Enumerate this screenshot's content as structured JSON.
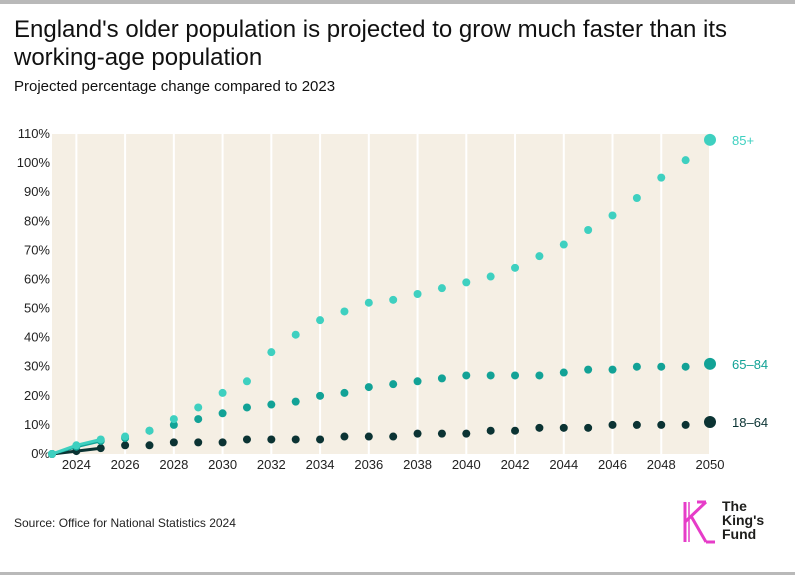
{
  "title": "England's older population is projected to grow much faster than its working-age population",
  "subtitle": "Projected percentage change compared to 2023",
  "source": "Source: Office for National Statistics 2024",
  "logo": {
    "line1": "The",
    "line2": "King's",
    "line3": "Fund"
  },
  "colors": {
    "background": "#f5efe4",
    "grid": "#ffffff",
    "age65plus": "#3ed0c0",
    "age65to84": "#12a296",
    "age18to64": "#0b3333",
    "mark": "#e63cc8"
  },
  "chart_data": {
    "type": "scatter",
    "title": "England's older population is projected to grow much faster than its working-age population",
    "subtitle": "Projected percentage change compared to 2023",
    "xlabel": "",
    "ylabel": "",
    "xlim": [
      2023,
      2050
    ],
    "ylim": [
      0,
      110
    ],
    "x_ticks": [
      2024,
      2026,
      2028,
      2030,
      2032,
      2034,
      2036,
      2038,
      2040,
      2042,
      2044,
      2046,
      2048,
      2050
    ],
    "y_ticks": [
      "0%",
      "10%",
      "20%",
      "30%",
      "40%",
      "50%",
      "60%",
      "70%",
      "80%",
      "90%",
      "100%",
      "110%"
    ],
    "grid": "vertical",
    "x": [
      2023,
      2024,
      2025,
      2026,
      2027,
      2028,
      2029,
      2030,
      2031,
      2032,
      2033,
      2034,
      2035,
      2036,
      2037,
      2038,
      2039,
      2040,
      2041,
      2042,
      2043,
      2044,
      2045,
      2046,
      2047,
      2048,
      2049,
      2050
    ],
    "series": [
      {
        "name": "85+",
        "color": "#3ed0c0",
        "values": [
          0,
          3,
          5,
          6,
          8,
          12,
          16,
          21,
          25,
          35,
          41,
          46,
          49,
          52,
          53,
          55,
          57,
          59,
          61,
          64,
          68,
          72,
          77,
          82,
          88,
          95,
          101,
          108
        ]
      },
      {
        "name": "65–84",
        "color": "#12a296",
        "values": [
          0,
          2.5,
          4.5,
          5.5,
          8,
          10,
          12,
          14,
          16,
          17,
          18,
          20,
          21,
          23,
          24,
          25,
          26,
          27,
          27,
          27,
          27,
          28,
          29,
          29,
          30,
          30,
          30,
          31
        ]
      },
      {
        "name": "18–64",
        "color": "#0b3333",
        "values": [
          0,
          1,
          2,
          3,
          3,
          4,
          4,
          4,
          5,
          5,
          5,
          5,
          6,
          6,
          6,
          7,
          7,
          7,
          8,
          8,
          9,
          9,
          9,
          10,
          10,
          10,
          10,
          11
        ]
      }
    ]
  }
}
